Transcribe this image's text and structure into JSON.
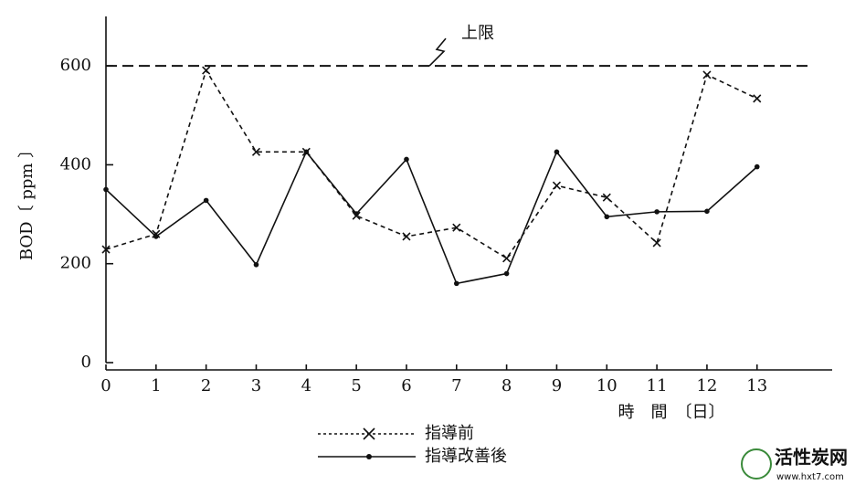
{
  "chart_data": {
    "type": "line",
    "y_label": "BOD〔 ppm 〕",
    "x_label": "時　間　〔日〕",
    "x": [
      0,
      1,
      2,
      3,
      4,
      5,
      6,
      7,
      8,
      9,
      10,
      11,
      12,
      13
    ],
    "xlim": [
      0,
      14.5
    ],
    "xticks": [
      0,
      1,
      2,
      3,
      4,
      5,
      6,
      7,
      8,
      9,
      10,
      11,
      12,
      13
    ],
    "ylim": [
      0,
      700
    ],
    "yticks": [
      0,
      200,
      400,
      600
    ],
    "series": [
      {
        "name": "指導前",
        "color": "#111111",
        "linestyle": "dashed",
        "marker": "x",
        "values": [
          229,
          260,
          591,
          426,
          426,
          297,
          255,
          273,
          211,
          358,
          334,
          242,
          582,
          534
        ]
      },
      {
        "name": "指導改善後",
        "color": "#111111",
        "linestyle": "solid",
        "marker": "dot",
        "values": [
          350,
          255,
          328,
          198,
          426,
          301,
          411,
          160,
          180,
          426,
          295,
          305,
          306,
          396
        ]
      }
    ],
    "reference_lines": [
      {
        "value": 600,
        "label": "上限"
      }
    ],
    "legend": "bottom",
    "watermark": {
      "name": "活性炭网",
      "url": "www.hxt7.com"
    }
  }
}
